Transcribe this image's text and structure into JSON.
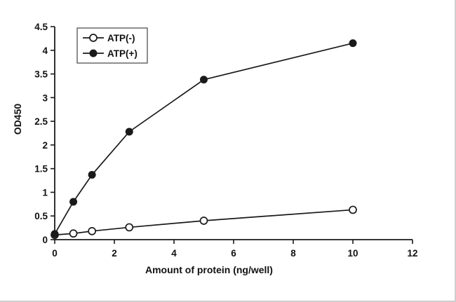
{
  "chart_data": {
    "type": "line",
    "title": "",
    "xlabel": "Amount of protein (ng/well)",
    "ylabel": "OD450",
    "xlim": [
      0,
      12
    ],
    "ylim": [
      0,
      4.5
    ],
    "xticks": [
      0,
      2,
      4,
      6,
      8,
      10,
      12
    ],
    "yticks": [
      0,
      0.5,
      1,
      1.5,
      2,
      2.5,
      3,
      3.5,
      4,
      4.5
    ],
    "grid": false,
    "legend_position": "top-left",
    "line_color": "#1a1a1a",
    "series": [
      {
        "name": "ATP(-)",
        "marker": "open-circle",
        "x": [
          0,
          0.625,
          1.25,
          2.5,
          5,
          10
        ],
        "y": [
          0.1,
          0.13,
          0.18,
          0.26,
          0.4,
          0.63
        ]
      },
      {
        "name": "ATP(+)",
        "marker": "filled-circle",
        "x": [
          0,
          0.625,
          1.25,
          2.5,
          5,
          10
        ],
        "y": [
          0.12,
          0.8,
          1.37,
          2.28,
          3.38,
          4.15
        ]
      }
    ]
  }
}
